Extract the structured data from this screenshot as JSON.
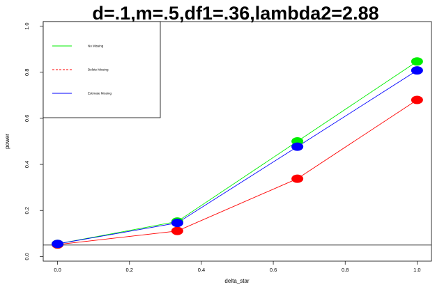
{
  "chart_data": {
    "type": "line",
    "title": "d=.1,m=.5,df1=.36,lambda2=2.88",
    "xlabel": "delta_star",
    "ylabel": "power",
    "xlim": [
      -0.04,
      1.04
    ],
    "ylim": [
      -0.02,
      1.02
    ],
    "x_ticks": [
      "0.0",
      "0.2",
      "0.4",
      "0.6",
      "0.8",
      "1.0"
    ],
    "x_tick_values": [
      0.0,
      0.2,
      0.4,
      0.6,
      0.8,
      1.0
    ],
    "y_ticks": [
      "0.0",
      "0.2",
      "0.4",
      "0.6",
      "0.8",
      "1.0"
    ],
    "y_tick_values": [
      0.0,
      0.2,
      0.4,
      0.6,
      0.8,
      1.0
    ],
    "reference_line_y": 0.05,
    "x": [
      0.0,
      0.333,
      0.667,
      1.0
    ],
    "series": [
      {
        "name": "No Missing",
        "color": "#00ee00",
        "line_style": "solid",
        "values": [
          0.055,
          0.152,
          0.5,
          0.847
        ]
      },
      {
        "name": "Delete Missing",
        "color": "#ff0000",
        "line_style": "dashed",
        "values": [
          0.052,
          0.111,
          0.338,
          0.68
        ]
      },
      {
        "name": "Estimate Missing",
        "color": "#0000ff",
        "line_style": "solid",
        "values": [
          0.055,
          0.146,
          0.477,
          0.808
        ]
      }
    ],
    "legend_position": "top-left"
  }
}
